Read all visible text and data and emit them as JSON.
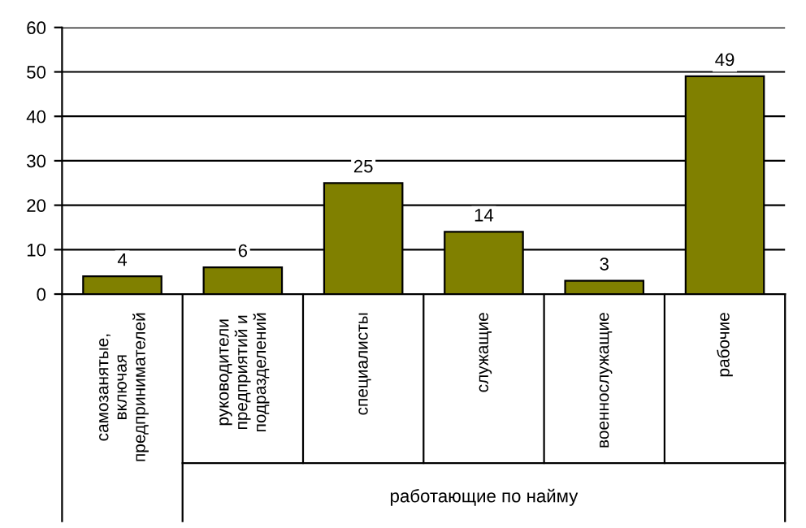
{
  "chart_data": {
    "type": "bar",
    "categories": [
      "самозанятые,\nвключая\nпредпринимателей",
      "руководители\nпредприятий и\nподразделений",
      "специалисты",
      "служащие",
      "военнослужащие",
      "рабочие"
    ],
    "values": [
      4,
      6,
      25,
      14,
      3,
      49
    ],
    "color": "#808000",
    "ylim": [
      0,
      60
    ],
    "yticks": [
      0,
      10,
      20,
      30,
      40,
      50,
      60
    ],
    "grid": "y",
    "data_labels": true,
    "annotations": [
      "работающие по найму"
    ]
  }
}
